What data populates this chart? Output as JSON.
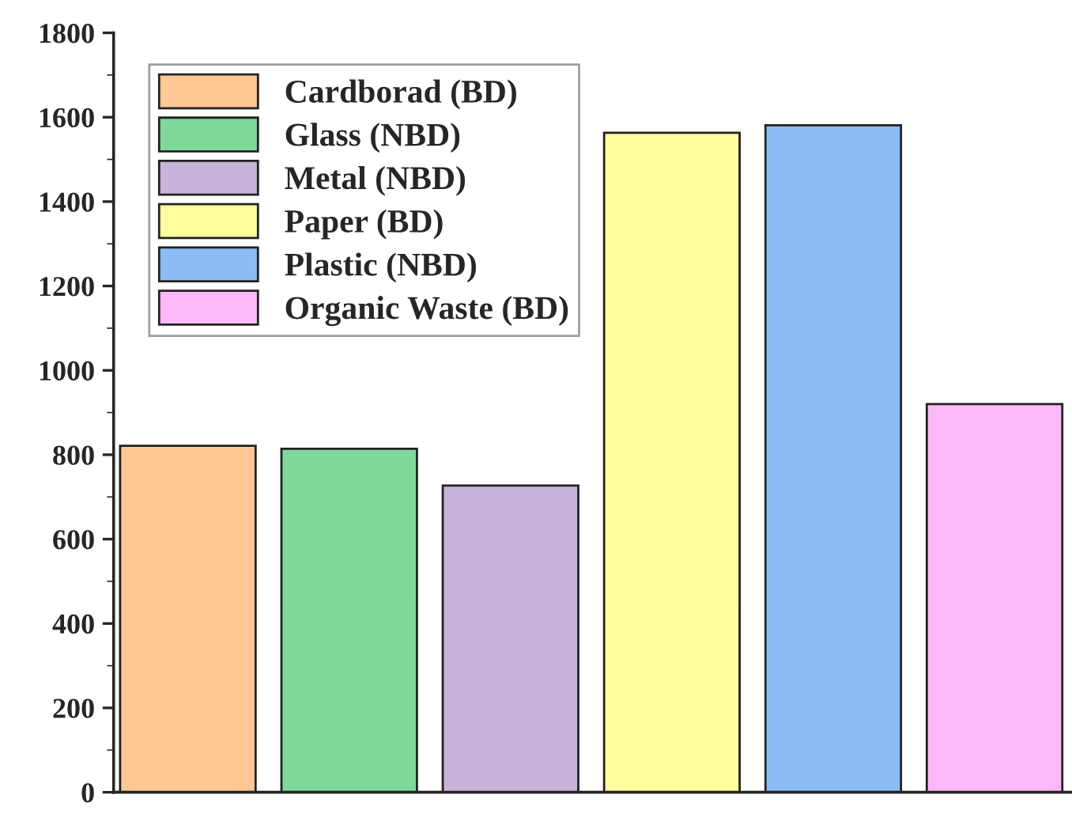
{
  "chart_data": {
    "type": "bar",
    "categories": [
      null,
      null,
      null,
      null,
      null,
      null
    ],
    "series": [
      {
        "name": "Cardborad (BD)",
        "color": "#fec794",
        "values": [
          821,
          null,
          null,
          null,
          null,
          null
        ]
      },
      {
        "name": "Glass (NBD)",
        "color": "#7fd99a",
        "values": [
          null,
          814,
          null,
          null,
          null,
          null
        ]
      },
      {
        "name": "Metal (NBD)",
        "color": "#c8b4d8",
        "values": [
          null,
          null,
          727,
          null,
          null,
          null
        ]
      },
      {
        "name": "Paper (BD)",
        "color": "#fefe9c",
        "values": [
          null,
          null,
          null,
          1563,
          null,
          null
        ]
      },
      {
        "name": "Plastic (NBD)",
        "color": "#8bbcf4",
        "values": [
          null,
          null,
          null,
          null,
          1581,
          null
        ]
      },
      {
        "name": "Organic Waste (BD)",
        "color": "#fdb8f8",
        "values": [
          null,
          null,
          null,
          null,
          null,
          920
        ]
      }
    ],
    "ylim": [
      0,
      1800
    ],
    "yticks": [
      0,
      200,
      400,
      600,
      800,
      1000,
      1200,
      1400,
      1600,
      1800
    ],
    "legend": "top left",
    "grid": false,
    "tick_labels": "y"
  }
}
